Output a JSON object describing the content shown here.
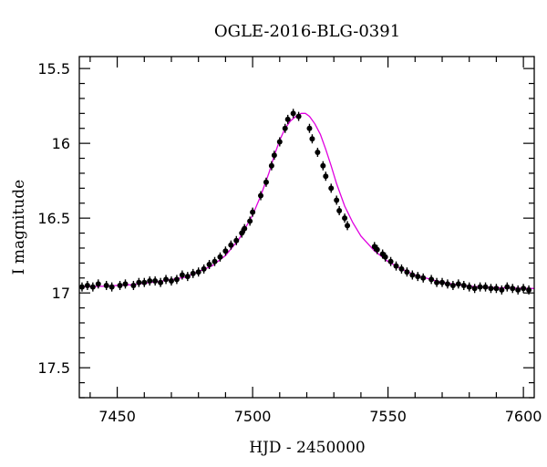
{
  "chart_data": {
    "type": "scatter",
    "title": "OGLE-2016-BLG-0391",
    "xlabel": "HJD - 2450000",
    "ylabel": "I magnitude",
    "xlim": [
      7436,
      7604
    ],
    "ylim": [
      17.7,
      15.42
    ],
    "y_inverted": true,
    "grid": false,
    "x_ticks": [
      7450,
      7500,
      7550,
      7600
    ],
    "x_tick_labels": [
      "7450",
      "7500",
      "7550",
      "7600"
    ],
    "y_ticks": [
      15.5,
      16,
      16.5,
      17,
      17.5
    ],
    "y_tick_labels": [
      "15.5",
      "16",
      "16.5",
      "17",
      "17.5"
    ],
    "x_minor_step": 10,
    "y_minor_step": 0.1,
    "series": [
      {
        "kind": "observations",
        "color": "#000000",
        "x": [
          7437,
          7439,
          7441,
          7443,
          7446,
          7448,
          7451,
          7453,
          7456,
          7458,
          7460,
          7462,
          7464,
          7466,
          7468,
          7470,
          7472,
          7474,
          7476,
          7478,
          7480,
          7482,
          7484,
          7486,
          7488,
          7490,
          7492,
          7494,
          7496,
          7497,
          7499,
          7500,
          7503,
          7505,
          7507,
          7508,
          7510,
          7512,
          7513,
          7515,
          7517,
          7521,
          7522,
          7524,
          7526,
          7527,
          7529,
          7531,
          7532,
          7534,
          7535,
          7545,
          7546,
          7548,
          7549,
          7551,
          7553,
          7555,
          7557,
          7559,
          7561,
          7563,
          7566,
          7568,
          7570,
          7572,
          7574,
          7576,
          7578,
          7580,
          7582,
          7584,
          7586,
          7588,
          7590,
          7592,
          7594,
          7596,
          7598,
          7600,
          7602
        ],
        "y": [
          16.96,
          16.95,
          16.96,
          16.94,
          16.95,
          16.96,
          16.95,
          16.94,
          16.95,
          16.93,
          16.93,
          16.92,
          16.92,
          16.93,
          16.91,
          16.92,
          16.91,
          16.88,
          16.89,
          16.87,
          16.86,
          16.84,
          16.81,
          16.79,
          16.76,
          16.72,
          16.68,
          16.65,
          16.6,
          16.57,
          16.52,
          16.46,
          16.35,
          16.26,
          16.15,
          16.08,
          15.99,
          15.9,
          15.84,
          15.8,
          15.82,
          15.9,
          15.97,
          16.06,
          16.15,
          16.22,
          16.3,
          16.38,
          16.45,
          16.5,
          16.55,
          16.69,
          16.71,
          16.74,
          16.76,
          16.79,
          16.82,
          16.84,
          16.86,
          16.88,
          16.89,
          16.9,
          16.91,
          16.93,
          16.93,
          16.94,
          16.95,
          16.94,
          16.95,
          16.96,
          16.97,
          16.96,
          16.96,
          16.97,
          16.97,
          16.98,
          16.96,
          16.97,
          16.98,
          16.97,
          16.98
        ]
      },
      {
        "kind": "model",
        "color": "#e000e0",
        "x": [
          7436,
          7445,
          7455,
          7465,
          7475,
          7485,
          7490,
          7495,
          7500,
          7503,
          7506,
          7508,
          7510,
          7512,
          7514,
          7516,
          7518,
          7519.5,
          7521,
          7523,
          7525,
          7527,
          7529,
          7531,
          7534,
          7537,
          7540,
          7545,
          7550,
          7555,
          7560,
          7570,
          7580,
          7590,
          7604
        ],
        "y": [
          16.96,
          16.955,
          16.945,
          16.925,
          16.895,
          16.82,
          16.75,
          16.64,
          16.48,
          16.35,
          16.2,
          16.08,
          15.98,
          15.9,
          15.85,
          15.82,
          15.8,
          15.8,
          15.82,
          15.87,
          15.94,
          16.04,
          16.15,
          16.27,
          16.42,
          16.53,
          16.62,
          16.72,
          16.79,
          16.84,
          16.88,
          16.93,
          16.955,
          16.965,
          16.97
        ]
      }
    ]
  }
}
